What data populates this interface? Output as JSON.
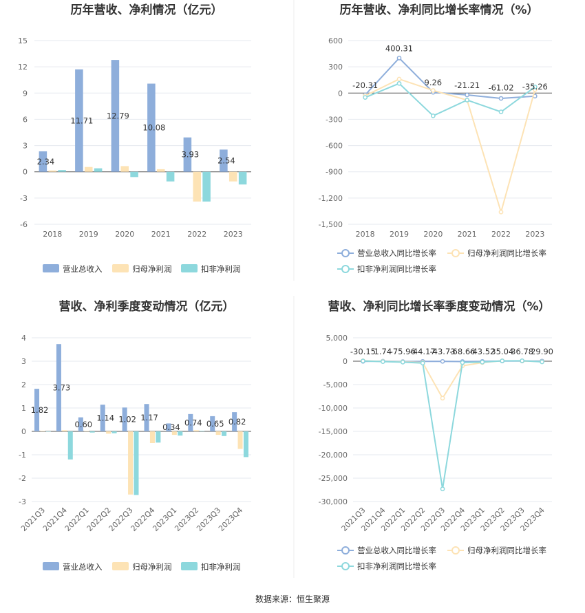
{
  "source": "数据来源：恒生聚源",
  "chart_data": [
    {
      "type": "bar",
      "title": "历年营收、净利情况（亿元）",
      "categories": [
        "2018",
        "2019",
        "2020",
        "2021",
        "2022",
        "2023"
      ],
      "ylim": [
        -6,
        15
      ],
      "yticks": [
        -6,
        -3,
        0,
        3,
        6,
        9,
        12,
        15
      ],
      "ytick_labels": [
        "-6",
        "-3",
        "0",
        "3",
        "6",
        "9",
        "12",
        "15"
      ],
      "series": [
        {
          "name": "营业总收入",
          "color": "#8eaedb",
          "values": [
            2.34,
            11.71,
            12.79,
            10.08,
            3.93,
            2.54
          ],
          "labels": [
            "2.34",
            "11.71",
            "12.79",
            "10.08",
            "3.93",
            "2.54"
          ]
        },
        {
          "name": "归母净利润",
          "color": "#fde3b5",
          "values": [
            0.15,
            0.55,
            0.65,
            0.3,
            -3.4,
            -1.1
          ]
        },
        {
          "name": "扣非净利润",
          "color": "#8dd8dd",
          "values": [
            0.2,
            0.4,
            -0.6,
            -1.1,
            -3.4,
            -1.45
          ]
        }
      ],
      "grid": true,
      "legend": "bottom"
    },
    {
      "type": "line",
      "title": "历年营收、净利同比增长率情况（%）",
      "categories": [
        "2018",
        "2019",
        "2020",
        "2021",
        "2022",
        "2023"
      ],
      "ylim": [
        -1500,
        600
      ],
      "yticks": [
        -1500,
        -1200,
        -900,
        -600,
        -300,
        0,
        300,
        600
      ],
      "ytick_labels": [
        "-1,500",
        "-1,200",
        "-900",
        "-600",
        "-300",
        "0",
        "300",
        "600"
      ],
      "series": [
        {
          "name": "营业总收入同比增长率",
          "color": "#8eaedb",
          "values": [
            -20.31,
            400.31,
            9.26,
            -21.21,
            -61.02,
            -35.26
          ],
          "labels": [
            "-20.31",
            "400.31",
            "9.26",
            "-21.21",
            "-61.02",
            "-35.26"
          ]
        },
        {
          "name": "归母净利润同比增长率",
          "color": "#fde3b5",
          "values": [
            -30,
            160,
            30,
            -80,
            -1360,
            40
          ]
        },
        {
          "name": "扣非净利润同比增长率",
          "color": "#8dd8dd",
          "values": [
            -50,
            110,
            -260,
            -80,
            -215,
            70
          ]
        }
      ],
      "grid": true,
      "legend": "bottom"
    },
    {
      "type": "bar",
      "title": "营收、净利季度变动情况（亿元）",
      "categories": [
        "2021Q3",
        "2021Q4",
        "2022Q1",
        "2022Q2",
        "2022Q3",
        "2022Q4",
        "2023Q1",
        "2023Q2",
        "2023Q3",
        "2023Q4"
      ],
      "ylim": [
        -3,
        4
      ],
      "yticks": [
        -3,
        -2,
        -1,
        0,
        1,
        2,
        3,
        4
      ],
      "ytick_labels": [
        "-3",
        "-2",
        "-1",
        "0",
        "1",
        "2",
        "3",
        "4"
      ],
      "series": [
        {
          "name": "营业总收入",
          "color": "#8eaedb",
          "values": [
            1.82,
            3.73,
            0.6,
            1.14,
            1.02,
            1.17,
            0.34,
            0.74,
            0.65,
            0.82
          ],
          "labels": [
            "1.82",
            "3.73",
            "0.60",
            "1.14",
            "1.02",
            "1.17",
            "0.34",
            "0.74",
            "0.65",
            "0.82"
          ]
        },
        {
          "name": "归母净利润",
          "color": "#fde3b5",
          "values": [
            0.02,
            0.05,
            0.02,
            -0.1,
            -2.7,
            -0.5,
            -0.15,
            0.05,
            -0.15,
            -0.75
          ]
        },
        {
          "name": "扣非净利润",
          "color": "#8dd8dd",
          "values": [
            0.0,
            -1.2,
            -0.05,
            -0.08,
            -2.72,
            -0.48,
            -0.18,
            0.02,
            -0.2,
            -1.1
          ]
        }
      ],
      "grid": true,
      "legend": "bottom"
    },
    {
      "type": "line",
      "title": "营收、净利同比增长率季度变动情况（%）",
      "categories": [
        "2021Q3",
        "2021Q4",
        "2022Q1",
        "2022Q2",
        "2022Q3",
        "2022Q4",
        "2023Q1",
        "2023Q2",
        "2023Q3",
        "2023Q4"
      ],
      "ylim": [
        -30000,
        5000
      ],
      "yticks": [
        -30000,
        -25000,
        -20000,
        -15000,
        -10000,
        -5000,
        0,
        5000
      ],
      "ytick_labels": [
        "-30,000",
        "-25,000",
        "-20,000",
        "-15,000",
        "-10,000",
        "-5,000",
        "0",
        "5,000"
      ],
      "series": [
        {
          "name": "营业总收入同比增长率",
          "color": "#8eaedb",
          "values": [
            -30.15,
            1.74,
            -75.96,
            -44.17,
            -43.73,
            -68.66,
            -43.52,
            35.04,
            36.78,
            29.9
          ],
          "labels": [
            "-30.15",
            "1.74",
            "-75.96",
            "-44.17",
            "-43.73",
            "-68.66",
            "-43.52",
            "35.04",
            "36.78",
            "29.90"
          ]
        },
        {
          "name": "归母净利润同比增长率",
          "color": "#fde3b5",
          "values": [
            100,
            -50,
            -150,
            -300,
            -7900,
            -1000,
            -300,
            100,
            50,
            -100
          ]
        },
        {
          "name": "扣非净利润同比增长率",
          "color": "#8dd8dd",
          "values": [
            50,
            -100,
            -200,
            -400,
            -27300,
            -300,
            -200,
            80,
            100,
            -150
          ]
        }
      ],
      "grid": true,
      "legend": "bottom"
    }
  ]
}
